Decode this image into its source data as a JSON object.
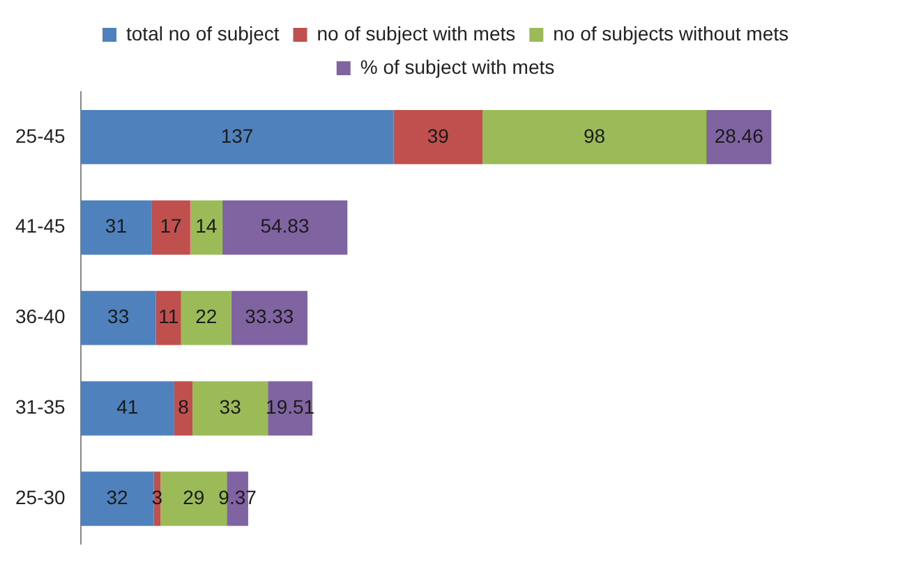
{
  "chart_data": {
    "type": "bar",
    "orientation": "horizontal",
    "stacked": true,
    "data_labels": true,
    "legend": "top",
    "grid": false,
    "categories": [
      "25-45",
      "41-45",
      "36-40",
      "31-35",
      "25-30"
    ],
    "series": [
      {
        "name": "total no of subject",
        "color": "#4f81bd",
        "values": [
          137,
          31,
          33,
          41,
          32
        ]
      },
      {
        "name": "no of subject with mets",
        "color": "#c0504d",
        "values": [
          39,
          17,
          11,
          8,
          3
        ]
      },
      {
        "name": "no of subjects without mets",
        "color": "#9bbb59",
        "values": [
          98,
          14,
          22,
          33,
          29
        ]
      },
      {
        "name": "% of subject with mets",
        "color": "#8064a2",
        "values": [
          28.46,
          54.83,
          33.33,
          19.51,
          9.37
        ]
      }
    ]
  }
}
